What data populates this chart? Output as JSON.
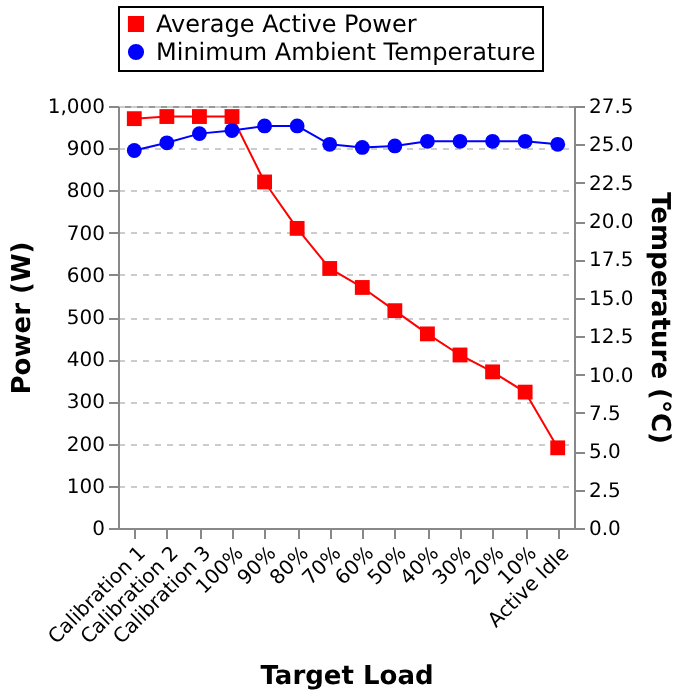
{
  "chart_data": {
    "type": "line",
    "xlabel": "Target Load",
    "ylabel": "Power (W)",
    "y2label": "Temperature  (°C)",
    "categories": [
      "Calibration 1",
      "Calibration 2",
      "Calibration 3",
      "100%",
      "90%",
      "80%",
      "70%",
      "60%",
      "50%",
      "40%",
      "30%",
      "20%",
      "10%",
      "Active Idle"
    ],
    "series": [
      {
        "name": "Average Active Power",
        "color": "#ff0000",
        "marker": "square",
        "values": [
          970,
          975,
          975,
          975,
          820,
          710,
          615,
          570,
          515,
          460,
          410,
          370,
          322,
          190
        ]
      },
      {
        "name": "Minimum Ambient Temperature",
        "color": "#0000ff",
        "marker": "circle",
        "axis": "y2",
        "values": [
          24.6,
          25.1,
          25.7,
          25.9,
          26.2,
          26.2,
          25.0,
          24.8,
          24.9,
          25.2,
          25.2,
          25.2,
          25.2,
          25.0
        ]
      }
    ],
    "ylim": [
      0,
      1000
    ],
    "yticks": [
      0,
      100,
      200,
      300,
      400,
      500,
      600,
      700,
      800,
      900,
      {
        "value": 1000,
        "label": "1,000"
      }
    ],
    "y2lim": [
      0,
      27.5
    ],
    "y2ticks": [
      {
        "value": 0,
        "label": "0.0"
      },
      2.5,
      {
        "value": 5,
        "label": "5.0"
      },
      7.5,
      {
        "value": 10,
        "label": "10.0"
      },
      12.5,
      {
        "value": 15,
        "label": "15.0"
      },
      17.5,
      {
        "value": 20,
        "label": "20.0"
      },
      22.5,
      {
        "value": 25,
        "label": "25.0"
      },
      27.5
    ],
    "grid": "y",
    "legend": "top",
    "line_style": "solid"
  }
}
